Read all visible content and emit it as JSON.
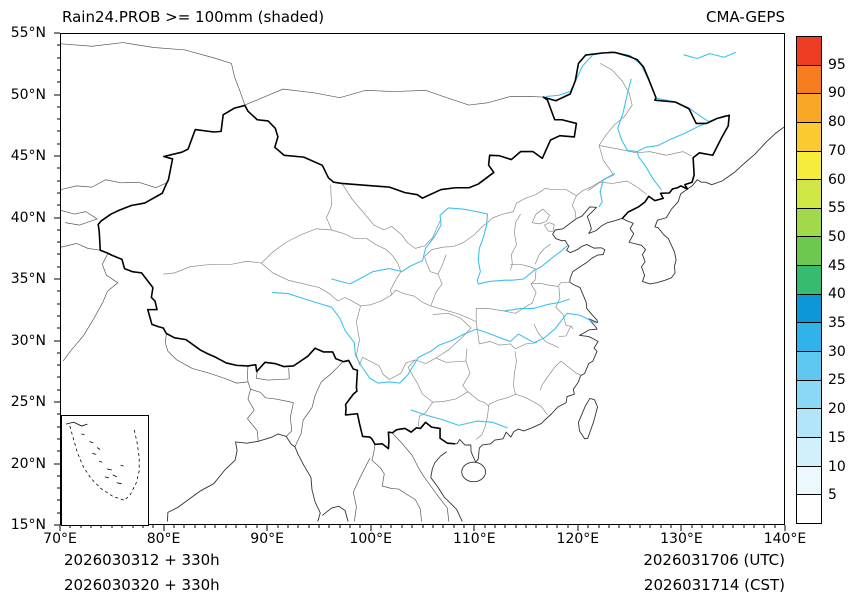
{
  "header": {
    "title": "Rain24.PROB >= 100mm (shaded)",
    "model": "CMA-GEPS"
  },
  "axes": {
    "y_ticks": [
      "55°N",
      "50°N",
      "45°N",
      "40°N",
      "35°N",
      "30°N",
      "25°N",
      "20°N",
      "15°N"
    ],
    "x_ticks": [
      "70°E",
      "80°E",
      "90°E",
      "100°E",
      "110°E",
      "120°E",
      "130°E",
      "140°E"
    ]
  },
  "colorbar": {
    "labels_top_to_bottom": [
      "95",
      "90",
      "80",
      "70",
      "60",
      "55",
      "50",
      "45",
      "40",
      "35",
      "30",
      "25",
      "20",
      "15",
      "10",
      "5"
    ],
    "colors_top_to_bottom": [
      "#ee3b23",
      "#f67d1f",
      "#f9a825",
      "#fbc930",
      "#f5ec3b",
      "#cfe644",
      "#a2d94a",
      "#6cc94e",
      "#35bc6e",
      "#0d96d8",
      "#30b2ea",
      "#5fc8f1",
      "#8ad8f6",
      "#b0e5fa",
      "#d2effc",
      "#ebf8fe",
      "#ffffff"
    ]
  },
  "footer": {
    "init_utc": "2026030312 + 330h",
    "init_cst": "2026030320 + 330h",
    "valid_utc": "2026031706 (UTC)",
    "valid_cst": "2026031714 (CST)"
  },
  "map_colors": {
    "river": "#3fc1f0",
    "national_border": "#000000",
    "coastline": "#333333",
    "province": "#8c8c8c",
    "foreign": "#5a5a5a"
  }
}
